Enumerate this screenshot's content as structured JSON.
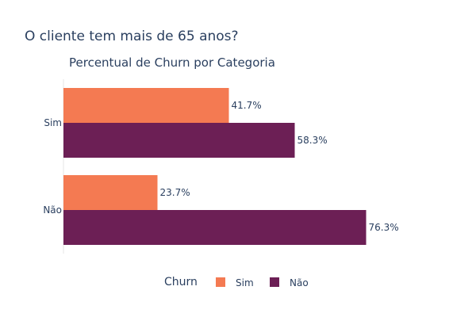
{
  "chart_data": {
    "type": "bar",
    "orientation": "horizontal",
    "title": "O cliente tem mais de 65 anos?",
    "subtitle": "Percentual de Churn por Categoria",
    "categories": [
      "Sim",
      "Não"
    ],
    "series": [
      {
        "name": "Sim",
        "values": [
          41.7,
          23.7
        ],
        "labels": [
          "41.7%",
          "23.7%"
        ],
        "color": "#f47a52"
      },
      {
        "name": "Não",
        "values": [
          58.3,
          76.3
        ],
        "labels": [
          "58.3%",
          "76.3%"
        ],
        "color": "#6c1f55"
      }
    ],
    "xlim": [
      0,
      100
    ],
    "grid": false,
    "legend": {
      "title": "Churn",
      "placement": "bottom-center"
    }
  }
}
